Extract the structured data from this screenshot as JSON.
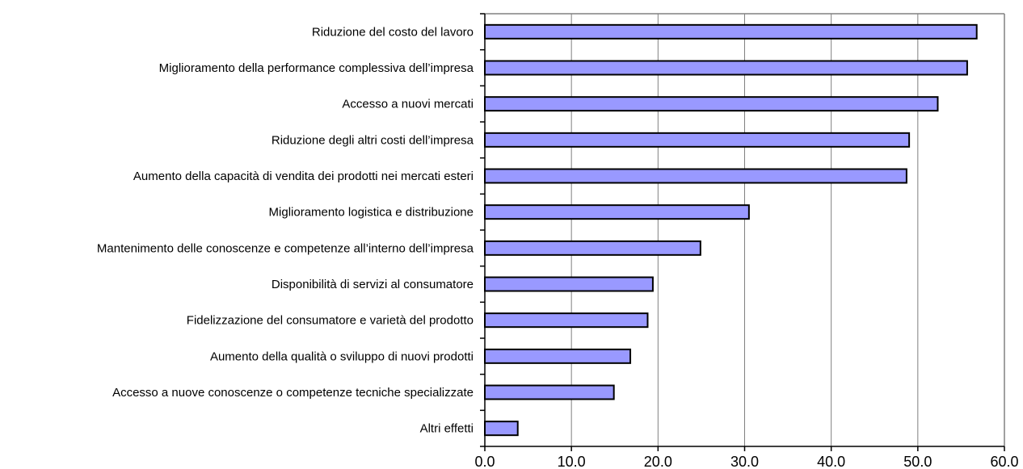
{
  "chart_data": {
    "type": "bar",
    "orientation": "horizontal",
    "title": "",
    "xlabel": "",
    "ylabel": "",
    "categories": [
      "Riduzione del costo del lavoro",
      "Miglioramento della performance complessiva dell’impresa",
      "Accesso a nuovi mercati",
      "Riduzione degli altri costi dell’impresa",
      "Aumento della capacità di vendita dei prodotti nei mercati esteri",
      "Miglioramento logistica e distribuzione",
      "Mantenimento delle conoscenze e competenze all’interno dell’impresa",
      "Disponibilità di servizi al consumatore",
      "Fidelizzazione del consumatore e varietà del prodotto",
      "Aumento della qualità o sviluppo di nuovi prodotti",
      "Accesso a nuove conoscenze o competenze tecniche specializzate",
      "Altri effetti"
    ],
    "values": [
      56.8,
      55.7,
      52.3,
      49.0,
      48.7,
      30.5,
      24.9,
      19.4,
      18.8,
      16.8,
      14.9,
      3.8
    ],
    "xlim": [
      0,
      60
    ],
    "xticks": [
      0,
      10,
      20,
      30,
      40,
      50,
      60
    ],
    "xtick_labels": [
      "0.0",
      "10.0",
      "20.0",
      "30.0",
      "40.0",
      "50.0",
      "60.0"
    ],
    "grid": "vertical",
    "legend": "none",
    "colors": {
      "bar_fill": "#9999ff",
      "bar_stroke": "#000000",
      "grid": "#808080",
      "axis": "#000000",
      "frame": "#808080"
    }
  }
}
